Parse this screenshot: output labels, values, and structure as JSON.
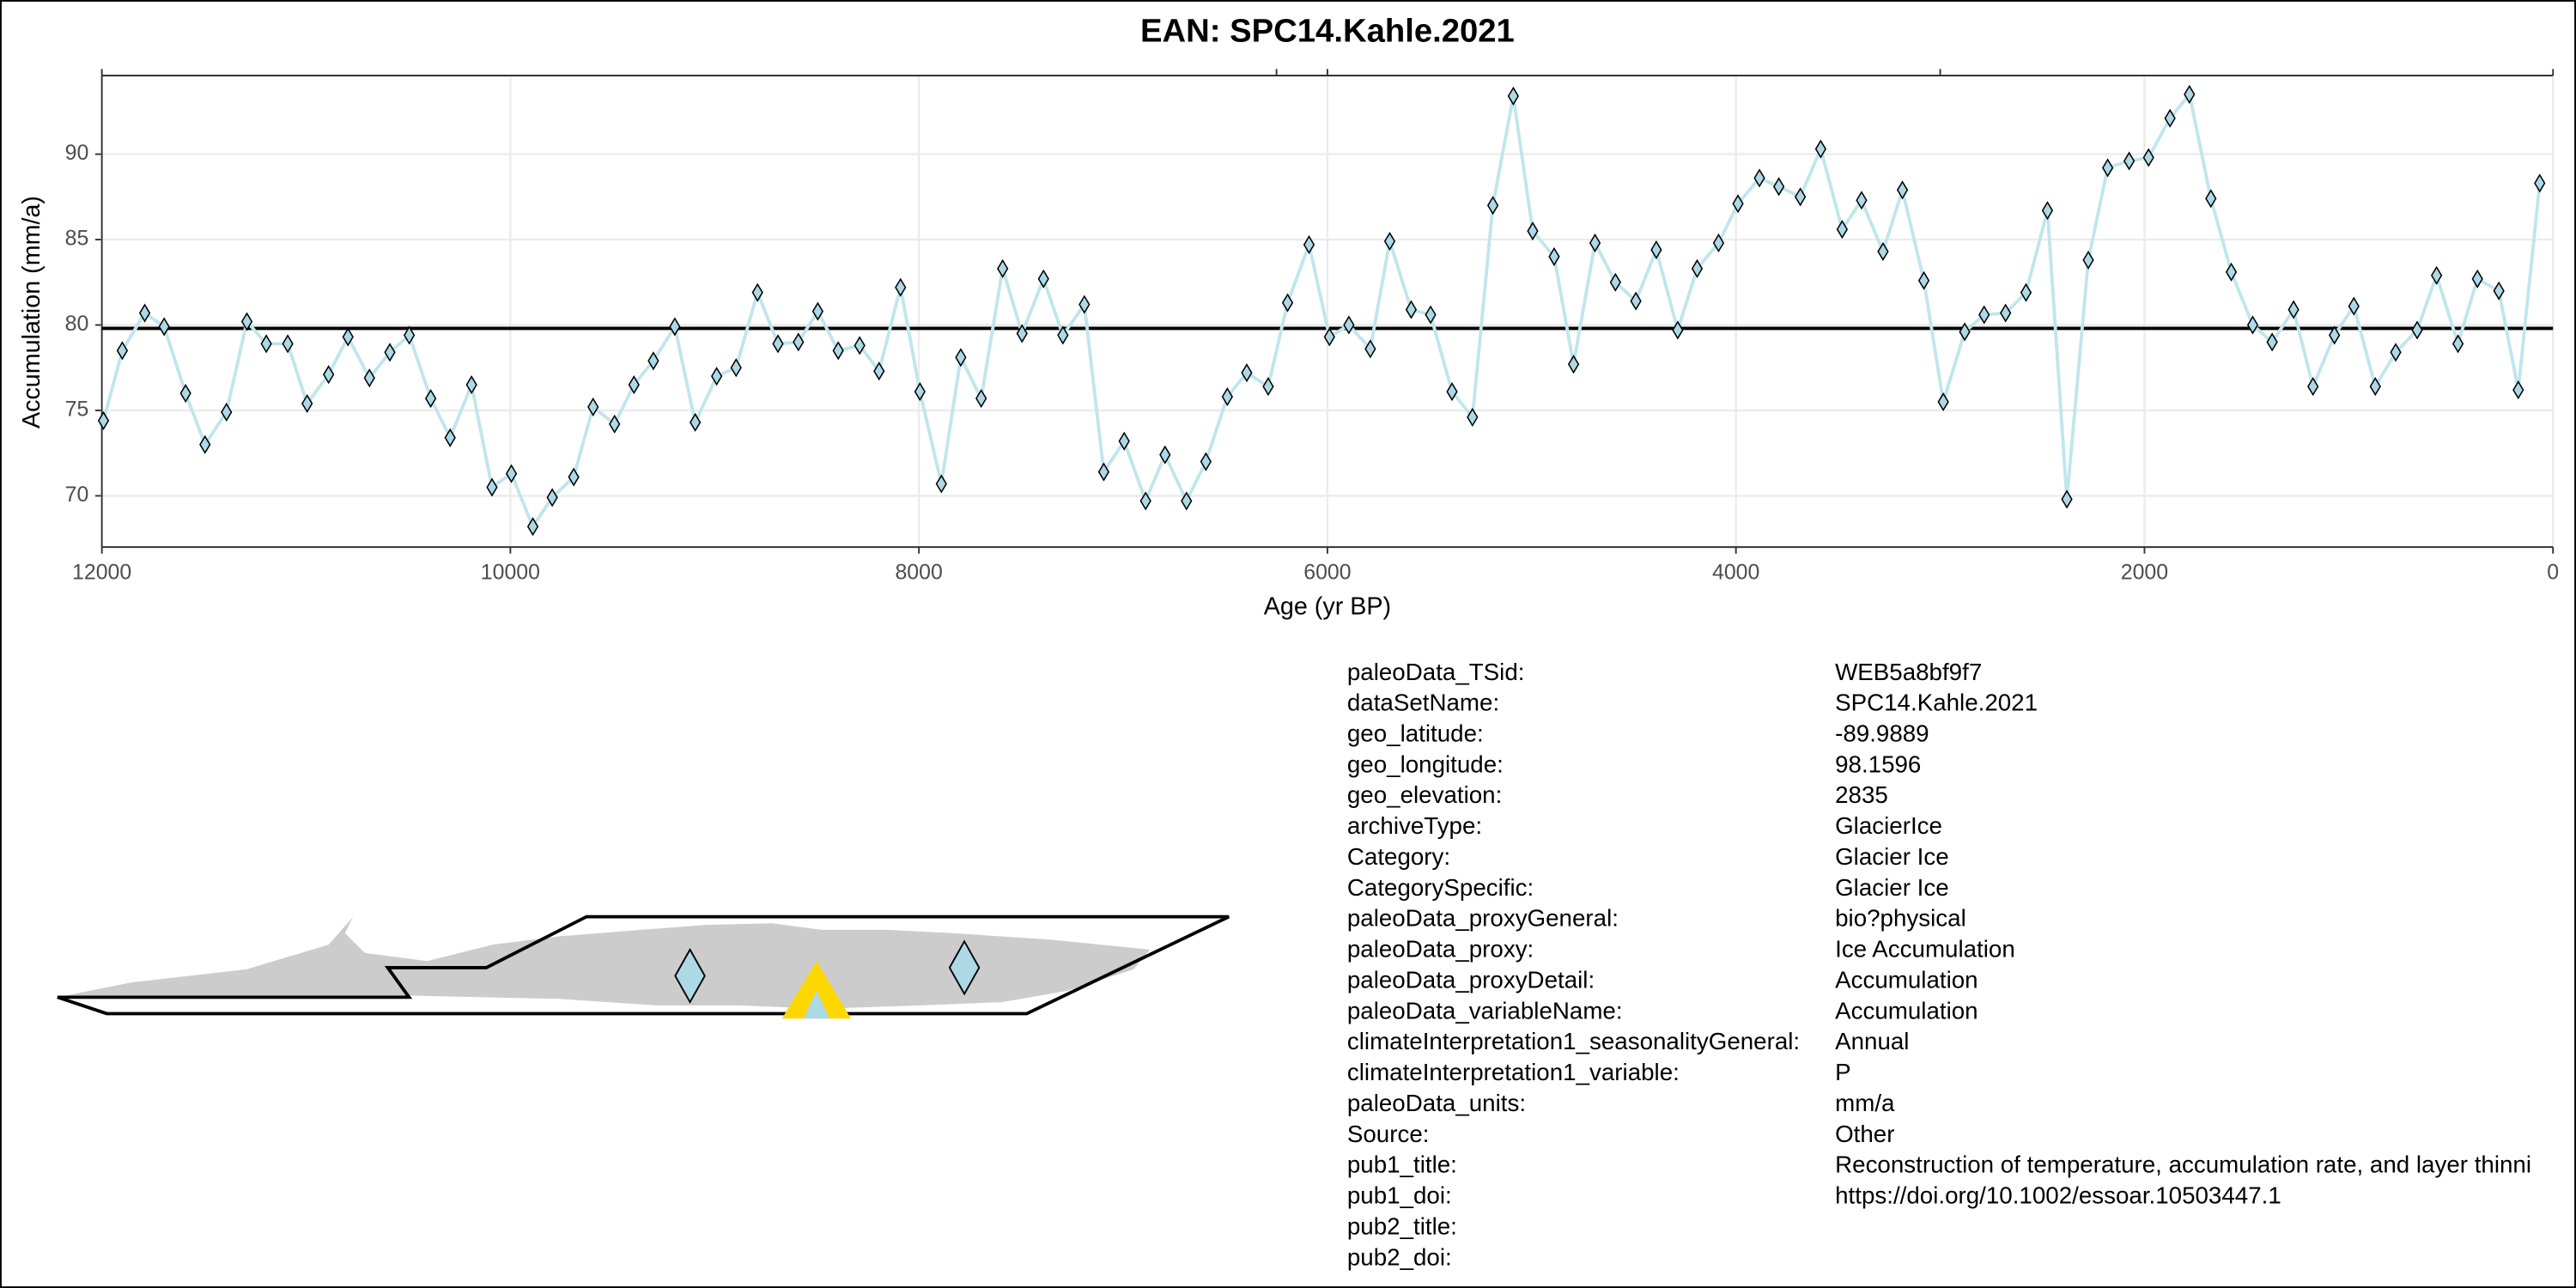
{
  "chart_data": {
    "type": "line",
    "title": "EAN: SPC14.Kahle.2021",
    "xlabel": "Age (yr BP)",
    "ylabel": "Accumulation (mm/a)",
    "x": [
      11992,
      11900,
      11790,
      11695,
      11590,
      11495,
      11390,
      11290,
      11195,
      11090,
      10995,
      10890,
      10795,
      10690,
      10590,
      10495,
      10390,
      10295,
      10190,
      10090,
      9995,
      9890,
      9795,
      9690,
      9595,
      9490,
      9395,
      9300,
      9195,
      9095,
      8990,
      8895,
      8790,
      8690,
      8590,
      8495,
      8395,
      8290,
      8195,
      8090,
      7995,
      7890,
      7795,
      7695,
      7590,
      7495,
      7390,
      7295,
      7190,
      7095,
      6995,
      6890,
      6795,
      6690,
      6595,
      6490,
      6395,
      6290,
      6195,
      6090,
      5990,
      5895,
      5790,
      5695,
      5590,
      5495,
      5390,
      5290,
      5190,
      5090,
      4995,
      4890,
      4795,
      4690,
      4590,
      4490,
      4390,
      4285,
      4190,
      4085,
      3990,
      3885,
      3790,
      3685,
      3585,
      3480,
      3385,
      3280,
      3185,
      3080,
      2985,
      2880,
      2785,
      2680,
      2580,
      2475,
      2380,
      2275,
      2180,
      2075,
      1980,
      1875,
      1780,
      1675,
      1575,
      1470,
      1375,
      1270,
      1175,
      1070,
      975,
      870,
      770,
      665,
      570,
      465,
      370,
      265,
      170,
      65
    ],
    "values": [
      74.4,
      78.5,
      80.7,
      79.9,
      76.0,
      73.0,
      74.9,
      80.2,
      78.9,
      78.9,
      75.4,
      77.1,
      79.3,
      76.9,
      78.4,
      79.4,
      75.7,
      73.4,
      76.5,
      70.5,
      71.3,
      68.2,
      69.9,
      71.1,
      75.2,
      74.2,
      76.5,
      77.9,
      79.9,
      74.3,
      77.0,
      77.5,
      81.9,
      78.9,
      79.0,
      80.8,
      78.5,
      78.8,
      77.3,
      82.2,
      76.1,
      70.7,
      78.1,
      75.7,
      83.3,
      79.5,
      82.7,
      79.4,
      81.2,
      71.4,
      73.2,
      69.7,
      72.4,
      69.7,
      72.0,
      75.8,
      77.2,
      76.4,
      81.3,
      84.7,
      79.3,
      80.0,
      78.6,
      84.9,
      80.9,
      80.6,
      76.1,
      74.6,
      87.0,
      93.4,
      85.5,
      84.0,
      77.7,
      84.8,
      82.5,
      81.4,
      84.4,
      79.7,
      83.3,
      84.8,
      87.1,
      88.6,
      88.1,
      87.5,
      90.3,
      85.6,
      87.3,
      84.3,
      87.9,
      82.6,
      75.5,
      79.6,
      80.6,
      80.7,
      81.9,
      86.7,
      69.8,
      83.8,
      89.2,
      89.6,
      89.8,
      92.1,
      93.5,
      87.4,
      83.1,
      80.0,
      79.0,
      80.9,
      76.4,
      79.4,
      81.1,
      76.4,
      78.4,
      79.7,
      82.9,
      78.9,
      82.7,
      82.0,
      76.2,
      88.3
    ],
    "color": "#bfe6ec",
    "marker_color": "#add8e6",
    "hline": 79.8,
    "xlim": [
      12000,
      0
    ],
    "xticks": [
      12000,
      10000,
      8000,
      6000,
      4000,
      2000,
      0
    ],
    "ylim": [
      67,
      94.6
    ],
    "yticks": [
      70,
      75,
      80,
      85,
      90
    ],
    "grid": true
  },
  "metadata": {
    "rows": [
      [
        "paleoData_TSid:",
        "WEB5a8bf9f7"
      ],
      [
        "dataSetName:",
        "SPC14.Kahle.2021"
      ],
      [
        "geo_latitude:",
        "-89.9889"
      ],
      [
        "geo_longitude:",
        "98.1596"
      ],
      [
        "geo_elevation:",
        "2835"
      ],
      [
        "archiveType:",
        "GlacierIce"
      ],
      [
        "Category:",
        "Glacier Ice"
      ],
      [
        "CategorySpecific:",
        "Glacier Ice"
      ],
      [
        "paleoData_proxyGeneral:",
        "bio?physical"
      ],
      [
        "paleoData_proxy:",
        "Ice Accumulation"
      ],
      [
        "paleoData_proxyDetail:",
        "Accumulation"
      ],
      [
        "paleoData_variableName:",
        "Accumulation"
      ],
      [
        "climateInterpretation1_seasonalityGeneral:",
        "Annual"
      ],
      [
        "climateInterpretation1_variable:",
        "P"
      ],
      [
        "paleoData_units:",
        "mm/a"
      ],
      [
        "Source:",
        "Other"
      ],
      [
        "pub1_title:",
        "Reconstruction of temperature, accumulation rate, and layer thinni"
      ],
      [
        "pub1_doi:",
        "https://doi.org/10.1002/essoar.10503447.1"
      ],
      [
        "pub2_title:"
      ],
      [
        "pub2_doi:"
      ]
    ]
  }
}
